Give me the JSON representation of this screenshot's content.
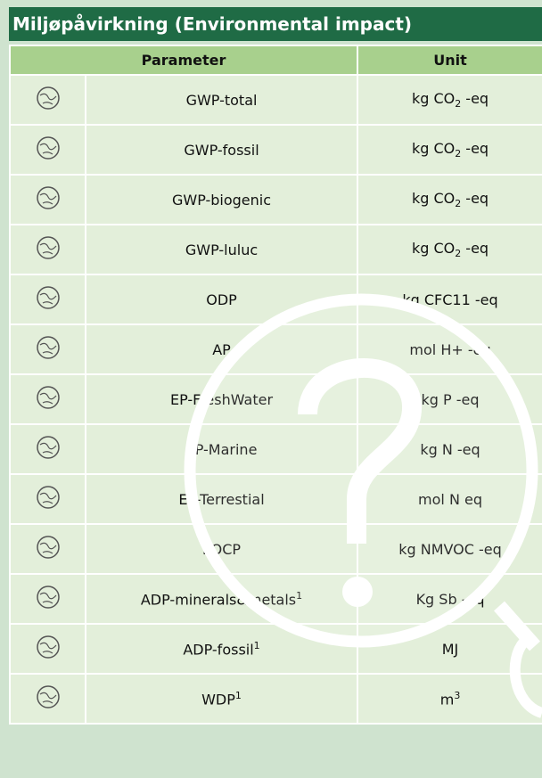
{
  "header": {
    "title": "Miljøpåvirkning (Environmental impact)",
    "parameter": "Parameter",
    "unit": "Unit"
  },
  "table": {
    "rows": [
      {
        "parameter": "GWP-total",
        "unit": "kg CO",
        "unit_sub": "2",
        "unit_rest": " -eq"
      },
      {
        "parameter": "GWP-fossil",
        "unit": "kg CO",
        "unit_sub": "2",
        "unit_rest": " -eq"
      },
      {
        "parameter": "GWP-biogenic",
        "unit": "kg CO",
        "unit_sub": "2",
        "unit_rest": " -eq"
      },
      {
        "parameter": "GWP-luluc",
        "unit": "kg CO",
        "unit_sub": "2",
        "unit_rest": " -eq"
      },
      {
        "parameter": "ODP",
        "unit": "kg CFC11 -eq"
      },
      {
        "parameter": "AP",
        "unit": "mol H+ -eq"
      },
      {
        "parameter": "EP-FreshWater",
        "unit": "kg P -eq"
      },
      {
        "parameter": "EP-Marine",
        "unit": "kg N -eq"
      },
      {
        "parameter": "EP-Terrestial",
        "unit": "mol N eq"
      },
      {
        "parameter": "POCP",
        "unit": "kg NMVOC -eq"
      },
      {
        "parameter": "ADP-minerals&metals",
        "parameter_sup": "1",
        "unit": "Kg Sb -eq"
      },
      {
        "parameter": "ADP-fossil",
        "parameter_sup": "1",
        "unit": "MJ"
      },
      {
        "parameter": "WDP",
        "parameter_sup": "1",
        "unit": "m",
        "unit_sup": "3"
      }
    ]
  }
}
